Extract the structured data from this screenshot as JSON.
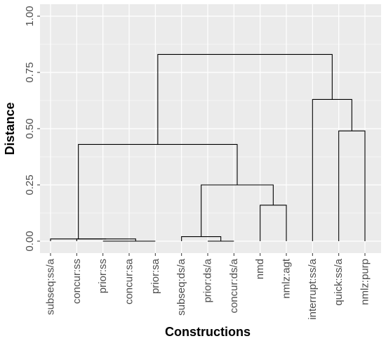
{
  "chart_data": {
    "type": "dendrogram",
    "xlabel": "Constructions",
    "ylabel": "Distance",
    "ylim": [
      0,
      1.05
    ],
    "yticks": [
      0.0,
      0.25,
      0.5,
      0.75,
      1.0
    ],
    "ytick_labels": [
      "0.00",
      "0.25",
      "0.50",
      "0.75",
      "1.00"
    ],
    "leaves": [
      "subseq:ss/a",
      "concur:ss",
      "prior:ss",
      "concur:sa",
      "prior:sa",
      "subseq:ds/a",
      "prior:ds/a",
      "concur:ds/a",
      "nmd",
      "nmlz:agt",
      "interrupt:ss/a",
      "quick:ss/a",
      "nmlz:purp"
    ],
    "merges": [
      {
        "left": "leaf:2",
        "right": "leaf:3",
        "height": 0.0
      },
      {
        "left": "merge:0",
        "right": "leaf:4",
        "height": 0.0
      },
      {
        "left": "leaf:1",
        "right": "merge:1",
        "height": 0.01
      },
      {
        "left": "leaf:0",
        "right": "merge:2",
        "height": 0.01
      },
      {
        "left": "leaf:6",
        "right": "leaf:7",
        "height": 0.0
      },
      {
        "left": "leaf:5",
        "right": "merge:4",
        "height": 0.02
      },
      {
        "left": "leaf:8",
        "right": "leaf:9",
        "height": 0.16
      },
      {
        "left": "merge:5",
        "right": "merge:6",
        "height": 0.25
      },
      {
        "left": "merge:3",
        "right": "merge:7",
        "height": 0.43
      },
      {
        "left": "leaf:11",
        "right": "leaf:12",
        "height": 0.49
      },
      {
        "left": "leaf:10",
        "right": "merge:9",
        "height": 0.63
      },
      {
        "left": "merge:8",
        "right": "merge:10",
        "height": 0.83
      }
    ],
    "grid": true,
    "colors": {
      "panel_background": "#ebebeb",
      "gridline": "#ffffff",
      "branch": "#000000",
      "tick_text": "#4d4d4d"
    }
  }
}
